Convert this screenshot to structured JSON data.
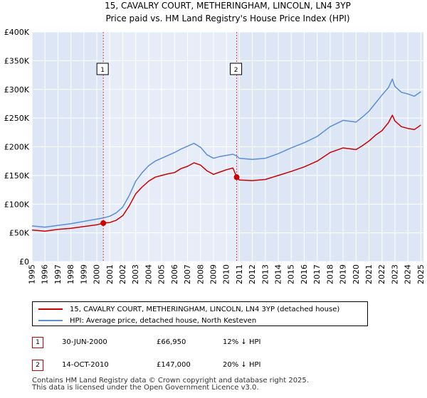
{
  "chart_data": {
    "type": "line",
    "title": "15, CAVALRY COURT, METHERINGHAM, LINCOLN, LN4 3YP",
    "subtitle": "Price paid vs. HM Land Registry's House Price Index (HPI)",
    "xlabel": "",
    "ylabel": "",
    "xlim": [
      1995.0,
      2025.2
    ],
    "ylim": [
      0,
      400000
    ],
    "x_ticks": [
      1995,
      1996,
      1997,
      1998,
      1999,
      2000,
      2001,
      2002,
      2003,
      2004,
      2005,
      2006,
      2007,
      2008,
      2009,
      2010,
      2011,
      2012,
      2013,
      2014,
      2015,
      2016,
      2017,
      2018,
      2019,
      2020,
      2021,
      2022,
      2023,
      2024,
      2025
    ],
    "x_tick_labels": [
      "1995",
      "1996",
      "1997",
      "1998",
      "1999",
      "2000",
      "2001",
      "2002",
      "2003",
      "2004",
      "2005",
      "2006",
      "2007",
      "2008",
      "2009",
      "2010",
      "2011",
      "2012",
      "2013",
      "2014",
      "2015",
      "2016",
      "2017",
      "2018",
      "2019",
      "2020",
      "2021",
      "2022",
      "2023",
      "2024",
      "2025"
    ],
    "y_ticks": [
      0,
      50000,
      100000,
      150000,
      200000,
      250000,
      300000,
      350000,
      400000
    ],
    "y_tick_labels": [
      "£0",
      "£50K",
      "£100K",
      "£150K",
      "£200K",
      "£250K",
      "£300K",
      "£350K",
      "£400K"
    ],
    "grid": true,
    "shaded_region": [
      2000.5,
      2010.79
    ],
    "series": [
      {
        "name": "15, CAVALRY COURT, METHERINGHAM, LINCOLN, LN4 3YP (detached house)",
        "color": "#cc0000",
        "x": [
          1995.0,
          1996.0,
          1997.0,
          1998.0,
          1999.0,
          2000.0,
          2000.5,
          2001.0,
          2001.5,
          2002.0,
          2002.5,
          2003.0,
          2003.5,
          2004.0,
          2004.5,
          2005.0,
          2005.5,
          2006.0,
          2006.5,
          2007.0,
          2007.5,
          2008.0,
          2008.5,
          2009.0,
          2009.5,
          2010.0,
          2010.5,
          2010.79,
          2011.0,
          2012.0,
          2013.0,
          2014.0,
          2015.0,
          2016.0,
          2017.0,
          2018.0,
          2019.0,
          2020.0,
          2020.5,
          2021.0,
          2021.5,
          2022.0,
          2022.5,
          2022.8,
          2023.0,
          2023.5,
          2024.0,
          2024.5,
          2025.0
        ],
        "values": [
          55000,
          53000,
          56000,
          58000,
          61000,
          64000,
          66950,
          68000,
          72000,
          80000,
          97000,
          118000,
          130000,
          140000,
          147000,
          150000,
          153000,
          155000,
          162000,
          166000,
          172000,
          168000,
          158000,
          152000,
          156000,
          160000,
          163000,
          147000,
          142000,
          141000,
          143000,
          150000,
          157000,
          165000,
          175000,
          190000,
          198000,
          195000,
          202000,
          210000,
          220000,
          228000,
          242000,
          255000,
          245000,
          235000,
          232000,
          230000,
          238000
        ]
      },
      {
        "name": "HPI: Average price, detached house, North Kesteven",
        "color": "#5b8ed6",
        "x": [
          1995.0,
          1996.0,
          1997.0,
          1998.0,
          1999.0,
          2000.0,
          2000.5,
          2001.0,
          2001.5,
          2002.0,
          2002.5,
          2003.0,
          2003.5,
          2004.0,
          2004.5,
          2005.0,
          2005.5,
          2006.0,
          2006.5,
          2007.0,
          2007.5,
          2008.0,
          2008.5,
          2009.0,
          2009.5,
          2010.0,
          2010.5,
          2010.79,
          2011.0,
          2012.0,
          2013.0,
          2014.0,
          2015.0,
          2016.0,
          2017.0,
          2018.0,
          2019.0,
          2020.0,
          2020.5,
          2021.0,
          2021.5,
          2022.0,
          2022.5,
          2022.8,
          2023.0,
          2023.5,
          2024.0,
          2024.5,
          2025.0
        ],
        "values": [
          62000,
          60000,
          63000,
          66000,
          70000,
          74000,
          76000,
          79000,
          85000,
          95000,
          115000,
          140000,
          155000,
          167000,
          175000,
          180000,
          185000,
          190000,
          196000,
          201000,
          206000,
          199000,
          186000,
          180000,
          183000,
          185000,
          187000,
          184000,
          180000,
          178000,
          180000,
          188000,
          198000,
          207000,
          218000,
          235000,
          246000,
          243000,
          252000,
          262000,
          276000,
          290000,
          303000,
          318000,
          305000,
          295000,
          292000,
          288000,
          296000
        ]
      }
    ],
    "annotations": [
      {
        "label": "1",
        "x": 2000.5,
        "y": 66950
      },
      {
        "label": "2",
        "x": 2010.79,
        "y": 147000
      }
    ]
  },
  "legend": {
    "items": [
      {
        "label": "15, CAVALRY COURT, METHERINGHAM, LINCOLN, LN4 3YP (detached house)",
        "color": "#cc0000"
      },
      {
        "label": "HPI: Average price, detached house, North Kesteven",
        "color": "#5b8ed6"
      }
    ]
  },
  "transactions": [
    {
      "num": "1",
      "date": "30-JUN-2000",
      "price": "£66,950",
      "hpi": "12% ↓ HPI"
    },
    {
      "num": "2",
      "date": "14-OCT-2010",
      "price": "£147,000",
      "hpi": "20% ↓ HPI"
    }
  ],
  "footer": {
    "line1": "Contains HM Land Registry data © Crown copyright and database right 2025.",
    "line2": "This data is licensed under the Open Government Licence v3.0."
  }
}
